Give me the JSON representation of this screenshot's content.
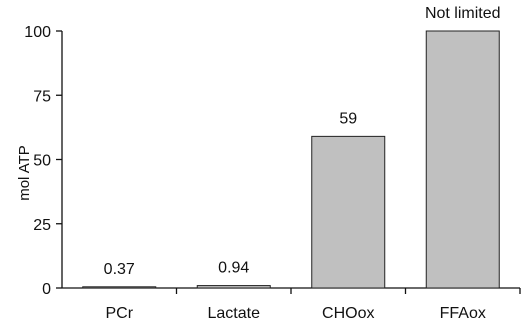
{
  "chart_data": {
    "type": "bar",
    "title": "",
    "xlabel": "",
    "ylabel": "mol ATP",
    "ylim": [
      0,
      100
    ],
    "yticks": [
      0,
      25,
      50,
      75,
      100
    ],
    "grid": false,
    "legend": "none",
    "categories": [
      "PCr",
      "Lactate",
      "CHOox",
      "FFAox"
    ],
    "values": [
      0.37,
      0.94,
      59,
      100
    ],
    "data_labels": [
      "0.37",
      "0.94",
      "59",
      "Not limited"
    ],
    "colors": {
      "bar_fill": "#c0c0c0",
      "bar_stroke": "#222222",
      "axis": "#111111"
    }
  }
}
